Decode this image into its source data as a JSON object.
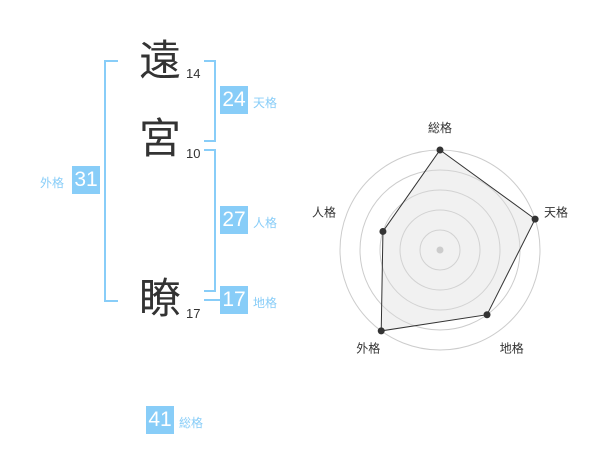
{
  "name": {
    "chars": [
      {
        "char": "遠",
        "strokes": "14"
      },
      {
        "char": "宮",
        "strokes": "10"
      },
      {
        "char": "瞭",
        "strokes": "17"
      }
    ]
  },
  "kaku": {
    "tenkaku": {
      "label": "天格",
      "value": "24"
    },
    "jinkaku": {
      "label": "人格",
      "value": "27"
    },
    "chikaku": {
      "label": "地格",
      "value": "17"
    },
    "gaikaku": {
      "label": "外格",
      "value": "31"
    },
    "soukaku": {
      "label": "総格",
      "value": "41"
    }
  },
  "colors": {
    "accent": "#88cdf8",
    "text": "#333333"
  },
  "chart_data": {
    "type": "radar",
    "axes": [
      "総格",
      "天格",
      "地格",
      "外格",
      "人格"
    ],
    "values": [
      5,
      5,
      4,
      5,
      3
    ],
    "range": [
      0,
      5
    ],
    "grid": true
  }
}
